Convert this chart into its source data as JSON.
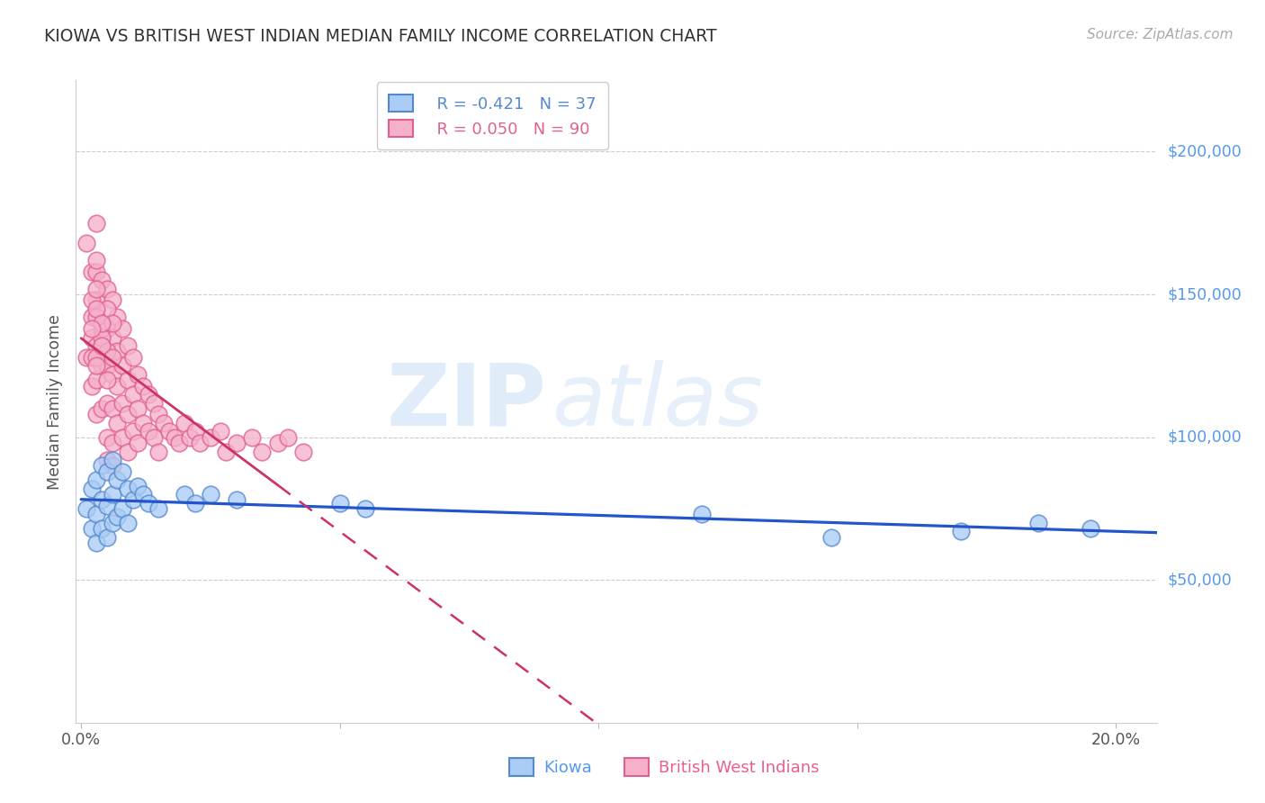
{
  "title": "KIOWA VS BRITISH WEST INDIAN MEDIAN FAMILY INCOME CORRELATION CHART",
  "source_text": "Source: ZipAtlas.com",
  "ylabel": "Median Family Income",
  "xlim_min": -0.001,
  "xlim_max": 0.208,
  "ylim_min": 0,
  "ylim_max": 225000,
  "yticks": [
    50000,
    100000,
    150000,
    200000
  ],
  "ytick_labels": [
    "$50,000",
    "$100,000",
    "$150,000",
    "$200,000"
  ],
  "xtick_positions": [
    0.0,
    0.05,
    0.1,
    0.15,
    0.2
  ],
  "xtick_labels": [
    "0.0%",
    "",
    "",
    "",
    "20.0%"
  ],
  "kiowa_color": "#aaccf5",
  "kiowa_edge": "#5588cc",
  "bwi_color": "#f5b0cc",
  "bwi_edge": "#e06090",
  "trend_kiowa_color": "#2255cc",
  "trend_bwi_color": "#cc3366",
  "legend_r_kiowa": "R = -0.421",
  "legend_n_kiowa": "N = 37",
  "legend_r_bwi": "R = 0.050",
  "legend_n_bwi": "N = 90",
  "kiowa_label": "Kiowa",
  "bwi_label": "British West Indians",
  "kiowa_x": [
    0.001,
    0.002,
    0.002,
    0.003,
    0.003,
    0.003,
    0.004,
    0.004,
    0.004,
    0.005,
    0.005,
    0.005,
    0.006,
    0.006,
    0.006,
    0.007,
    0.007,
    0.008,
    0.008,
    0.009,
    0.009,
    0.01,
    0.011,
    0.012,
    0.013,
    0.015,
    0.02,
    0.022,
    0.025,
    0.03,
    0.05,
    0.055,
    0.12,
    0.145,
    0.17,
    0.185,
    0.195
  ],
  "kiowa_y": [
    75000,
    82000,
    68000,
    85000,
    73000,
    63000,
    90000,
    78000,
    68000,
    88000,
    76000,
    65000,
    92000,
    80000,
    70000,
    85000,
    72000,
    88000,
    75000,
    82000,
    70000,
    78000,
    83000,
    80000,
    77000,
    75000,
    80000,
    77000,
    80000,
    78000,
    77000,
    75000,
    73000,
    65000,
    67000,
    70000,
    68000
  ],
  "bwi_x": [
    0.001,
    0.001,
    0.002,
    0.002,
    0.002,
    0.003,
    0.003,
    0.003,
    0.003,
    0.003,
    0.003,
    0.004,
    0.004,
    0.004,
    0.004,
    0.005,
    0.005,
    0.005,
    0.005,
    0.005,
    0.005,
    0.006,
    0.006,
    0.006,
    0.006,
    0.006,
    0.006,
    0.007,
    0.007,
    0.007,
    0.007,
    0.008,
    0.008,
    0.008,
    0.008,
    0.009,
    0.009,
    0.009,
    0.009,
    0.01,
    0.01,
    0.01,
    0.011,
    0.011,
    0.011,
    0.012,
    0.012,
    0.013,
    0.013,
    0.014,
    0.014,
    0.015,
    0.015,
    0.016,
    0.017,
    0.018,
    0.019,
    0.02,
    0.021,
    0.022,
    0.023,
    0.025,
    0.027,
    0.028,
    0.03,
    0.033,
    0.035,
    0.038,
    0.04,
    0.043,
    0.002,
    0.003,
    0.002,
    0.003,
    0.004,
    0.005,
    0.004,
    0.003,
    0.002,
    0.006,
    0.004,
    0.003,
    0.005,
    0.004,
    0.003,
    0.002,
    0.003,
    0.004,
    0.005,
    0.006
  ],
  "bwi_y": [
    168000,
    128000,
    158000,
    135000,
    118000,
    175000,
    158000,
    148000,
    132000,
    120000,
    108000,
    155000,
    140000,
    125000,
    110000,
    152000,
    138000,
    125000,
    112000,
    100000,
    92000,
    148000,
    135000,
    122000,
    110000,
    98000,
    90000,
    142000,
    130000,
    118000,
    105000,
    138000,
    125000,
    112000,
    100000,
    132000,
    120000,
    108000,
    95000,
    128000,
    115000,
    102000,
    122000,
    110000,
    98000,
    118000,
    105000,
    115000,
    102000,
    112000,
    100000,
    108000,
    95000,
    105000,
    102000,
    100000,
    98000,
    105000,
    100000,
    102000,
    98000,
    100000,
    102000,
    95000,
    98000,
    100000,
    95000,
    98000,
    100000,
    95000,
    148000,
    162000,
    142000,
    152000,
    138000,
    145000,
    132000,
    142000,
    128000,
    140000,
    135000,
    145000,
    130000,
    140000,
    128000,
    138000,
    125000,
    132000,
    120000,
    128000
  ]
}
